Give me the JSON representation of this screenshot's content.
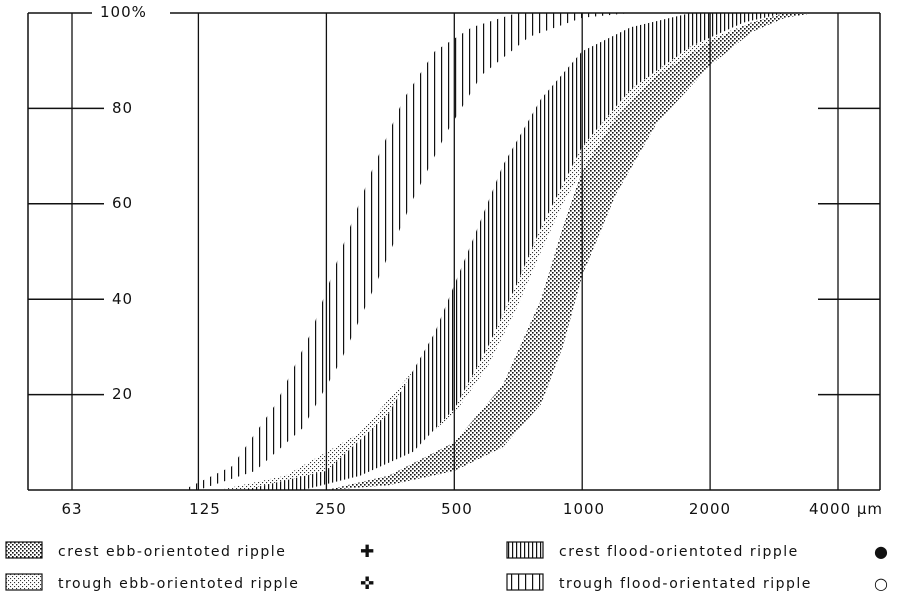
{
  "chart_data": {
    "type": "area",
    "title": "",
    "xlabel": "",
    "ylabel": "",
    "x_scale": "log2",
    "xlim": [
      63,
      4000
    ],
    "ylim": [
      0,
      100
    ],
    "x_ticks": [
      63,
      125,
      250,
      500,
      1000,
      2000,
      4000
    ],
    "x_tick_labels": [
      "63",
      "125",
      "250",
      "500",
      "1000",
      "2000",
      "4000 µm"
    ],
    "y_ticks": [
      20,
      40,
      60,
      80,
      100
    ],
    "y_tick_labels": [
      "20",
      "40",
      "60",
      "80",
      "100%"
    ],
    "grid": "vertical lines at x ticks",
    "legend_position": "bottom",
    "series": [
      {
        "name": "crest ebb-orientoted ripple",
        "marker": "✚",
        "fill": "dense-dots",
        "upper": [
          [
            250,
            0
          ],
          [
            350,
            3
          ],
          [
            500,
            10
          ],
          [
            650,
            22
          ],
          [
            800,
            40
          ],
          [
            900,
            55
          ],
          [
            1000,
            67
          ],
          [
            1200,
            78
          ],
          [
            1500,
            87
          ],
          [
            2000,
            94
          ],
          [
            2500,
            98
          ],
          [
            3000,
            100
          ]
        ],
        "lower": [
          [
            250,
            0
          ],
          [
            350,
            1
          ],
          [
            500,
            4
          ],
          [
            650,
            9
          ],
          [
            800,
            18
          ],
          [
            900,
            30
          ],
          [
            1000,
            45
          ],
          [
            1200,
            62
          ],
          [
            1500,
            77
          ],
          [
            2000,
            89
          ],
          [
            2500,
            96
          ],
          [
            3000,
            99
          ],
          [
            3500,
            100
          ]
        ]
      },
      {
        "name": "trough ebb-orientoted ripple",
        "marker": "✜",
        "fill": "light-dots",
        "upper": [
          [
            140,
            0
          ],
          [
            200,
            3
          ],
          [
            300,
            12
          ],
          [
            400,
            25
          ],
          [
            500,
            38
          ],
          [
            600,
            50
          ],
          [
            700,
            60
          ],
          [
            850,
            70
          ],
          [
            1000,
            77
          ],
          [
            1300,
            85
          ],
          [
            1800,
            93
          ],
          [
            2500,
            98
          ],
          [
            3000,
            100
          ]
        ],
        "lower": [
          [
            200,
            0
          ],
          [
            300,
            3
          ],
          [
            400,
            9
          ],
          [
            500,
            16
          ],
          [
            600,
            26
          ],
          [
            700,
            38
          ],
          [
            800,
            50
          ],
          [
            900,
            60
          ],
          [
            1000,
            67
          ],
          [
            1300,
            78
          ],
          [
            1800,
            90
          ],
          [
            2500,
            97
          ],
          [
            3000,
            99
          ],
          [
            3500,
            100
          ]
        ]
      },
      {
        "name": "crest flood-orientoted ripple",
        "marker": "●",
        "fill": "dense-vertical-lines",
        "upper": [
          [
            160,
            0
          ],
          [
            250,
            4
          ],
          [
            350,
            16
          ],
          [
            450,
            33
          ],
          [
            550,
            52
          ],
          [
            650,
            68
          ],
          [
            800,
            82
          ],
          [
            1000,
            92
          ],
          [
            1300,
            97
          ],
          [
            1800,
            100
          ]
        ],
        "lower": [
          [
            220,
            0
          ],
          [
            300,
            3
          ],
          [
            400,
            8
          ],
          [
            500,
            17
          ],
          [
            600,
            30
          ],
          [
            700,
            43
          ],
          [
            800,
            55
          ],
          [
            900,
            64
          ],
          [
            1000,
            72
          ],
          [
            1300,
            84
          ],
          [
            1800,
            93
          ],
          [
            2400,
            98
          ],
          [
            3000,
            100
          ]
        ]
      },
      {
        "name": "trough flood-orientated ripple",
        "marker": "○",
        "fill": "sparse-vertical-lines",
        "upper": [
          [
            115,
            0
          ],
          [
            150,
            5
          ],
          [
            190,
            18
          ],
          [
            230,
            33
          ],
          [
            270,
            50
          ],
          [
            320,
            67
          ],
          [
            380,
            82
          ],
          [
            450,
            92
          ],
          [
            550,
            97
          ],
          [
            700,
            100
          ]
        ],
        "lower": [
          [
            125,
            0
          ],
          [
            170,
            4
          ],
          [
            220,
            13
          ],
          [
            270,
            27
          ],
          [
            330,
            44
          ],
          [
            400,
            61
          ],
          [
            480,
            75
          ],
          [
            580,
            87
          ],
          [
            750,
            95
          ],
          [
            1000,
            99
          ],
          [
            1300,
            100
          ]
        ]
      }
    ]
  },
  "colors": {
    "ink": "#111111",
    "background": "#ffffff"
  }
}
